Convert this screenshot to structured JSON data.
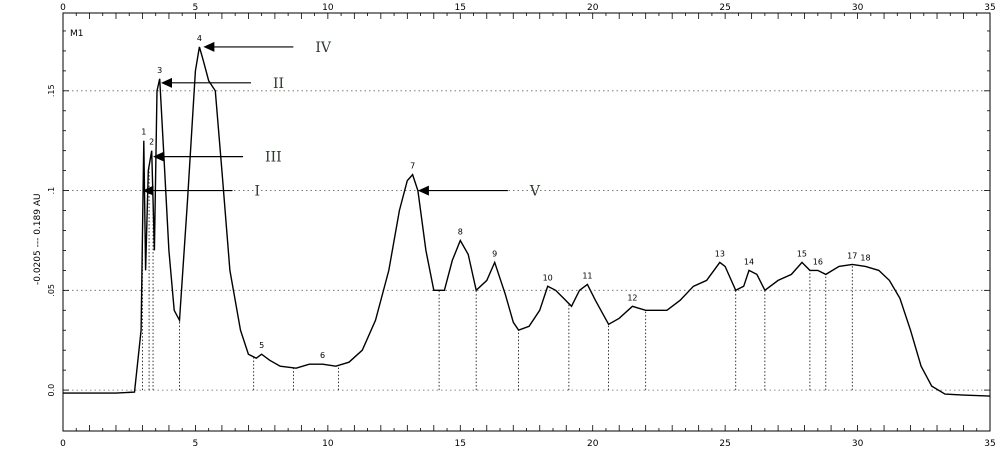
{
  "chart_data": {
    "type": "line",
    "title": "",
    "panel_label": "M1",
    "ylabel": "-0.0205 --- 0.189 AU",
    "xlim": [
      0,
      35
    ],
    "ylim": [
      -0.0205,
      0.189
    ],
    "x_ticks": [
      0,
      5,
      10,
      15,
      20,
      25,
      30,
      35
    ],
    "y_ticks": [
      {
        "value": 0.0,
        "label": "0.0"
      },
      {
        "value": 0.05,
        "label": ".05"
      },
      {
        "value": 0.1,
        "label": ".1"
      },
      {
        "value": 0.15,
        "label": ".15"
      }
    ],
    "grid": "dotted horizontal",
    "series": [
      {
        "x": [
          0,
          1,
          2,
          2.7,
          2.95,
          3.05,
          3.12,
          3.22,
          3.35,
          3.45,
          3.55,
          3.65,
          3.8,
          4.0,
          4.2,
          4.4,
          4.7,
          5.0,
          5.15,
          5.3,
          5.5,
          5.75,
          6.0,
          6.3,
          6.7,
          7.0,
          7.3,
          7.5,
          7.8,
          8.2,
          8.8,
          9.3,
          9.8,
          10.3,
          10.8,
          11.3,
          11.8,
          12.3,
          12.7,
          13.0,
          13.2,
          13.4,
          13.7,
          14.0,
          14.4,
          14.7,
          15.0,
          15.3,
          15.6,
          16.0,
          16.3,
          16.7,
          17.0,
          17.2,
          17.6,
          18.0,
          18.3,
          18.6,
          18.9,
          19.2,
          19.5,
          19.8,
          20.1,
          20.6,
          21.0,
          21.5,
          22.0,
          22.8,
          23.3,
          23.8,
          24.3,
          24.8,
          25.0,
          25.4,
          25.7,
          25.9,
          26.2,
          26.5,
          27.0,
          27.5,
          27.9,
          28.2,
          28.5,
          28.8,
          29.3,
          29.8,
          30.3,
          30.8,
          31.2,
          31.6,
          32.0,
          32.4,
          32.8,
          33.3,
          34,
          35
        ],
        "y": [
          -0.0015,
          -0.0015,
          -0.0015,
          -0.001,
          0.03,
          0.125,
          0.06,
          0.11,
          0.12,
          0.07,
          0.15,
          0.156,
          0.12,
          0.07,
          0.04,
          0.035,
          0.095,
          0.16,
          0.172,
          0.165,
          0.155,
          0.15,
          0.11,
          0.06,
          0.03,
          0.018,
          0.016,
          0.018,
          0.015,
          0.012,
          0.011,
          0.013,
          0.013,
          0.012,
          0.014,
          0.02,
          0.035,
          0.06,
          0.09,
          0.105,
          0.108,
          0.1,
          0.07,
          0.05,
          0.05,
          0.065,
          0.075,
          0.068,
          0.05,
          0.055,
          0.064,
          0.048,
          0.034,
          0.03,
          0.032,
          0.04,
          0.052,
          0.05,
          0.046,
          0.042,
          0.05,
          0.053,
          0.045,
          0.033,
          0.036,
          0.042,
          0.04,
          0.04,
          0.045,
          0.052,
          0.055,
          0.064,
          0.062,
          0.05,
          0.052,
          0.06,
          0.058,
          0.05,
          0.055,
          0.058,
          0.064,
          0.06,
          0.06,
          0.058,
          0.062,
          0.063,
          0.062,
          0.06,
          0.055,
          0.046,
          0.03,
          0.012,
          0.002,
          -0.002,
          -0.0025,
          -0.003
        ]
      }
    ],
    "peaks": [
      {
        "label": "1",
        "x": 3.05,
        "y": 0.125
      },
      {
        "label": "2",
        "x": 3.35,
        "y": 0.12
      },
      {
        "label": "3",
        "x": 3.65,
        "y": 0.156
      },
      {
        "label": "4",
        "x": 5.15,
        "y": 0.172
      },
      {
        "label": "5",
        "x": 7.5,
        "y": 0.018
      },
      {
        "label": "6",
        "x": 9.8,
        "y": 0.013
      },
      {
        "label": "7",
        "x": 13.2,
        "y": 0.108
      },
      {
        "label": "8",
        "x": 15.0,
        "y": 0.075
      },
      {
        "label": "9",
        "x": 16.3,
        "y": 0.064
      },
      {
        "label": "10",
        "x": 18.3,
        "y": 0.052
      },
      {
        "label": "11",
        "x": 19.8,
        "y": 0.053
      },
      {
        "label": "12",
        "x": 21.5,
        "y": 0.042
      },
      {
        "label": "13",
        "x": 24.8,
        "y": 0.064
      },
      {
        "label": "14",
        "x": 25.9,
        "y": 0.06
      },
      {
        "label": "15",
        "x": 27.9,
        "y": 0.064
      },
      {
        "label": "16",
        "x": 28.5,
        "y": 0.06
      },
      {
        "label": "17",
        "x": 29.8,
        "y": 0.063
      },
      {
        "label": "18",
        "x": 30.3,
        "y": 0.062
      }
    ],
    "fraction_cuts": [
      3.0,
      3.25,
      3.4,
      4.4,
      7.2,
      8.7,
      10.4,
      14.2,
      15.6,
      17.2,
      19.1,
      20.6,
      22.0,
      25.4,
      26.5,
      28.2,
      28.8,
      29.8
    ],
    "annotations": [
      {
        "text": "IV",
        "x": 5.3,
        "y": 0.172
      },
      {
        "text": "II",
        "x": 3.7,
        "y": 0.154
      },
      {
        "text": "III",
        "x": 3.4,
        "y": 0.117
      },
      {
        "text": "I",
        "x": 3.0,
        "y": 0.1
      },
      {
        "text": "V",
        "x": 13.4,
        "y": 0.1
      }
    ]
  }
}
